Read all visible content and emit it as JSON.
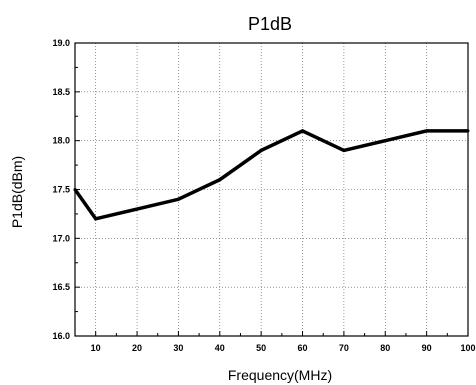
{
  "chart_data": {
    "type": "line",
    "title": "P1dB",
    "xlabel": "Frequency(MHz)",
    "ylabel": "P1dB(dBm)",
    "xlim": [
      5,
      100
    ],
    "ylim": [
      16.0,
      19.0
    ],
    "x_ticks": [
      10,
      20,
      30,
      40,
      50,
      60,
      70,
      80,
      90,
      100
    ],
    "x_tick_labels": [
      "10",
      "20",
      "30",
      "40",
      "50",
      "60",
      "70",
      "80",
      "90",
      "100"
    ],
    "y_ticks": [
      16.0,
      16.5,
      17.0,
      17.5,
      18.0,
      18.5,
      19.0
    ],
    "y_tick_labels": [
      "16.0",
      "16.5",
      "17.0",
      "17.5",
      "18.0",
      "18.5",
      "19.0"
    ],
    "grid": true,
    "series": [
      {
        "color": "#000000",
        "x": [
          5,
          10,
          20,
          30,
          40,
          50,
          60,
          70,
          80,
          90,
          100
        ],
        "values": [
          17.5,
          17.2,
          17.3,
          17.4,
          17.6,
          17.9,
          18.1,
          17.9,
          18.0,
          18.1,
          18.1
        ]
      }
    ]
  }
}
